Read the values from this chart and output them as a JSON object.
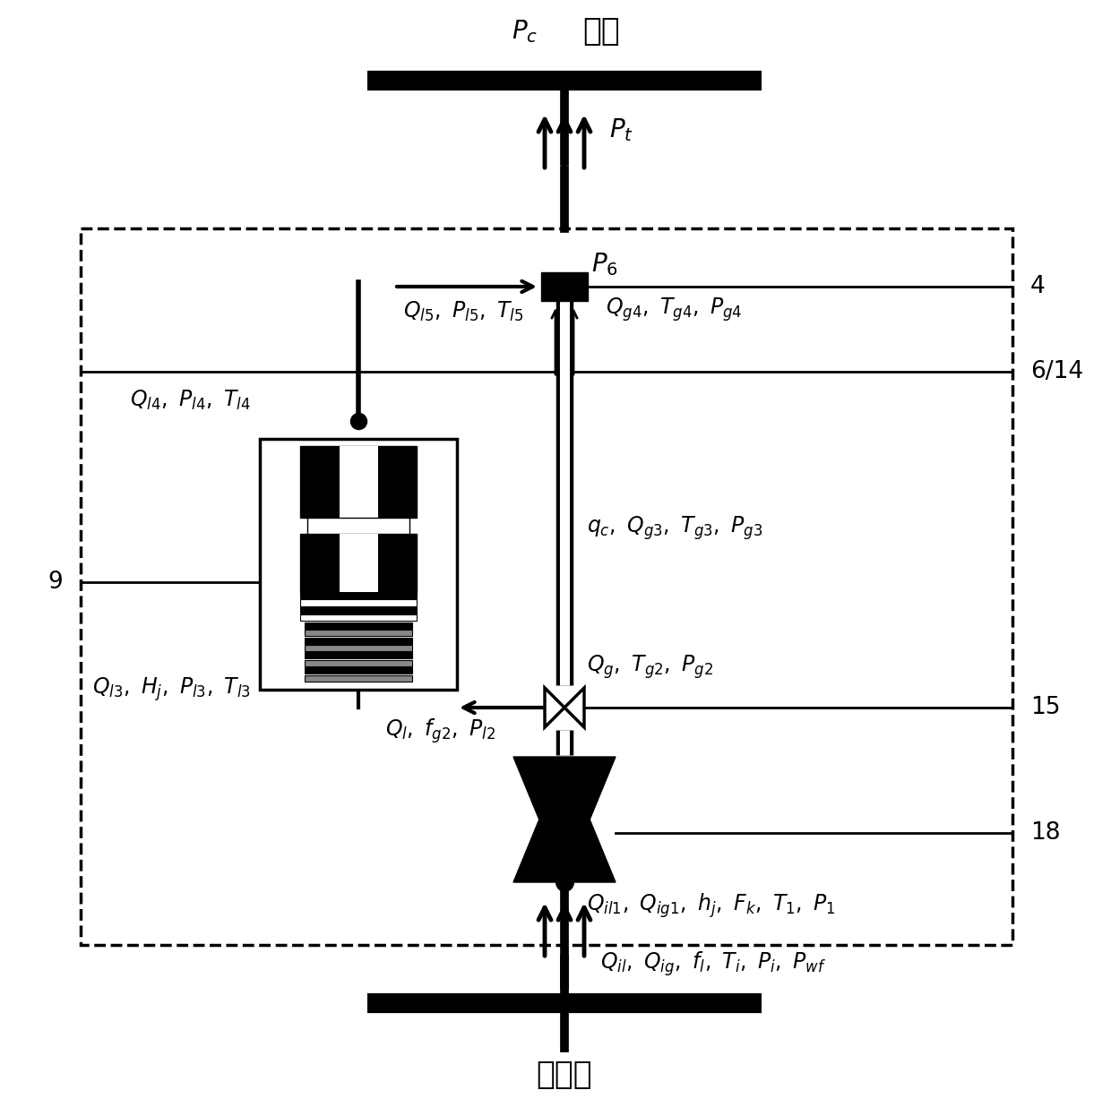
{
  "bg_color": "#ffffff",
  "top_label": "井口",
  "bottom_label": "产出层",
  "Pc": "$P_c$",
  "Pt": "$P_t$",
  "P6": "$P_6$",
  "row4_right": "$Q_{g4},\\ T_{g4},\\ P_{g4}$",
  "row5_left": "$Q_{l5},\\ P_{l5},\\ T_{l5}$",
  "row_l4": "$Q_{l4},\\ P_{l4},\\ T_{l4}$",
  "row_g3": "$q_c,\\ Q_{g3},\\ T_{g3},\\ P_{g3}$",
  "row_g2": "$Q_g,\\ T_{g2},\\ P_{g2}$",
  "row_l3": "$Q_{l3},\\ H_j,\\ P_{l3},\\ T_{l3}$",
  "row_l2": "$Q_l,\\ f_{g2},\\ P_{l2}$",
  "row_18b": "$Q_{il1},\\ Q_{ig1},\\ h_j,\\ F_k,\\ T_1,\\ P_1$",
  "row_bot": "$Q_{il},\\ Q_{ig},\\ f_l,\\ T_i,\\ P_i,\\ P_{wf}$",
  "n4": "4",
  "n614": "6/14",
  "n9": "9",
  "n15": "15",
  "n18": "18",
  "figsize": [
    12.4,
    12.46
  ],
  "dpi": 100
}
